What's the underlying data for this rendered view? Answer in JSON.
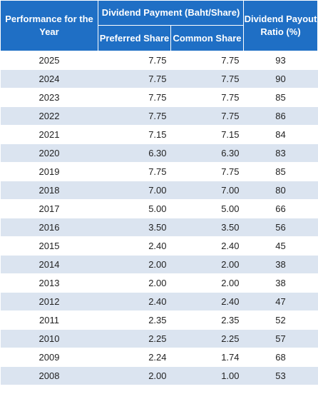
{
  "header": {
    "performance_label": "Performance for the Year",
    "dividend_group_label": "Dividend Payment (Baht/Share)",
    "preferred_label": "Preferred Share",
    "common_label": "Common Share",
    "payout_label": "Dividend Payout Ratio (%)"
  },
  "rows": [
    {
      "year": "2025",
      "preferred": "7.75",
      "common": "7.75",
      "ratio": "93"
    },
    {
      "year": "2024",
      "preferred": "7.75",
      "common": "7.75",
      "ratio": "90"
    },
    {
      "year": "2023",
      "preferred": "7.75",
      "common": "7.75",
      "ratio": "85"
    },
    {
      "year": "2022",
      "preferred": "7.75",
      "common": "7.75",
      "ratio": "86"
    },
    {
      "year": "2021",
      "preferred": "7.15",
      "common": "7.15",
      "ratio": "84"
    },
    {
      "year": "2020",
      "preferred": "6.30",
      "common": "6.30",
      "ratio": "83"
    },
    {
      "year": "2019",
      "preferred": "7.75",
      "common": "7.75",
      "ratio": "85"
    },
    {
      "year": "2018",
      "preferred": "7.00",
      "common": "7.00",
      "ratio": "80"
    },
    {
      "year": "2017",
      "preferred": "5.00",
      "common": "5.00",
      "ratio": "66"
    },
    {
      "year": "2016",
      "preferred": "3.50",
      "common": "3.50",
      "ratio": "56"
    },
    {
      "year": "2015",
      "preferred": "2.40",
      "common": "2.40",
      "ratio": "45"
    },
    {
      "year": "2014",
      "preferred": "2.00",
      "common": "2.00",
      "ratio": "38"
    },
    {
      "year": "2013",
      "preferred": "2.00",
      "common": "2.00",
      "ratio": "38"
    },
    {
      "year": "2012",
      "preferred": "2.40",
      "common": "2.40",
      "ratio": "47"
    },
    {
      "year": "2011",
      "preferred": "2.35",
      "common": "2.35",
      "ratio": "52"
    },
    {
      "year": "2010",
      "preferred": "2.25",
      "common": "2.25",
      "ratio": "57"
    },
    {
      "year": "2009",
      "preferred": "2.24",
      "common": "1.74",
      "ratio": "68"
    },
    {
      "year": "2008",
      "preferred": "2.00",
      "common": "1.00",
      "ratio": "53"
    }
  ],
  "colors": {
    "header_bg": "#1f6fc5",
    "header_text": "#ffffff",
    "stripe": "#dbe4f0"
  }
}
